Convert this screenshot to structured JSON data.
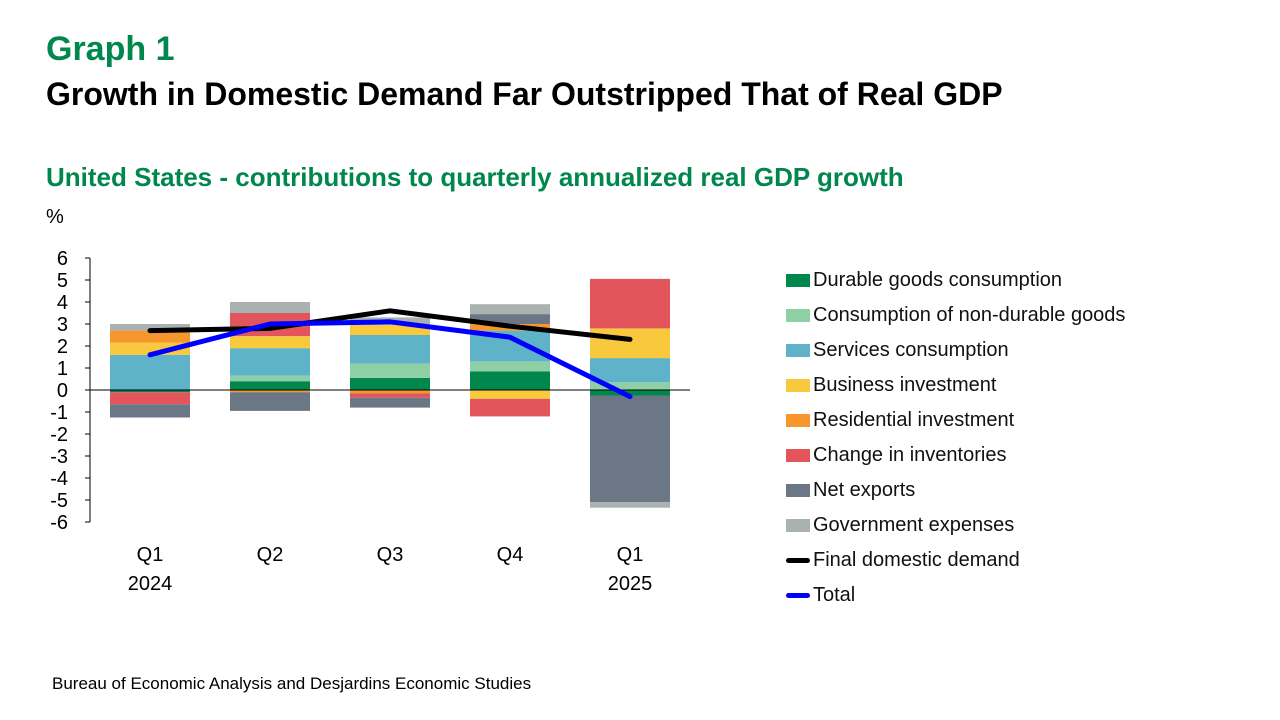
{
  "header": {
    "graph_label": "Graph 1",
    "title": "Growth in Domestic Demand Far Outstripped That of Real GDP",
    "subtitle": "United States - contributions to quarterly annualized real GDP growth",
    "unit": "%"
  },
  "source": "Bureau of Economic Analysis and Desjardins Economic Studies",
  "colors": {
    "accent_green": "#00874d",
    "title": "#000000"
  },
  "chart_data": {
    "type": "bar",
    "stacked": true,
    "categories": [
      {
        "label": "Q1",
        "sublabel": "2024"
      },
      {
        "label": "Q2",
        "sublabel": ""
      },
      {
        "label": "Q3",
        "sublabel": ""
      },
      {
        "label": "Q4",
        "sublabel": ""
      },
      {
        "label": "Q1",
        "sublabel": "2025"
      }
    ],
    "ylim": [
      -6,
      6
    ],
    "yticks": [
      6,
      5,
      4,
      3,
      2,
      1,
      0,
      -1,
      -2,
      -3,
      -4,
      -5,
      -6
    ],
    "series": [
      {
        "name": "Durable goods consumption",
        "color": "#00874d",
        "values": [
          -0.1,
          0.4,
          0.55,
          0.85,
          -0.25
        ]
      },
      {
        "name": "Consumption of non-durable goods",
        "color": "#8fcfa6",
        "values": [
          0.0,
          0.25,
          0.65,
          0.45,
          0.35
        ]
      },
      {
        "name": "Services consumption",
        "color": "#5fb3c8",
        "values": [
          1.6,
          1.25,
          1.3,
          1.4,
          1.1
        ]
      },
      {
        "name": "Business investment",
        "color": "#f8c93c",
        "values": [
          0.55,
          0.55,
          0.45,
          -0.4,
          1.35
        ]
      },
      {
        "name": "Residential investment",
        "color": "#f7962d",
        "values": [
          0.55,
          -0.1,
          -0.15,
          0.3,
          0.0
        ]
      },
      {
        "name": "Change in inventories",
        "color": "#e2555a",
        "values": [
          -0.55,
          1.05,
          -0.2,
          -0.8,
          2.25
        ]
      },
      {
        "name": "Net exports",
        "color": "#6b7784",
        "values": [
          -0.6,
          -0.85,
          -0.45,
          0.45,
          -4.85
        ]
      },
      {
        "name": "Government expenses",
        "color": "#a9b2b1",
        "values": [
          0.3,
          0.5,
          0.35,
          0.45,
          -0.25
        ]
      }
    ],
    "lines": [
      {
        "name": "Final domestic demand",
        "color": "#000000",
        "values": [
          2.7,
          2.8,
          3.6,
          2.9,
          2.3
        ]
      },
      {
        "name": "Total",
        "color": "#0000ff",
        "values": [
          1.6,
          3.0,
          3.1,
          2.4,
          -0.3
        ]
      }
    ]
  }
}
